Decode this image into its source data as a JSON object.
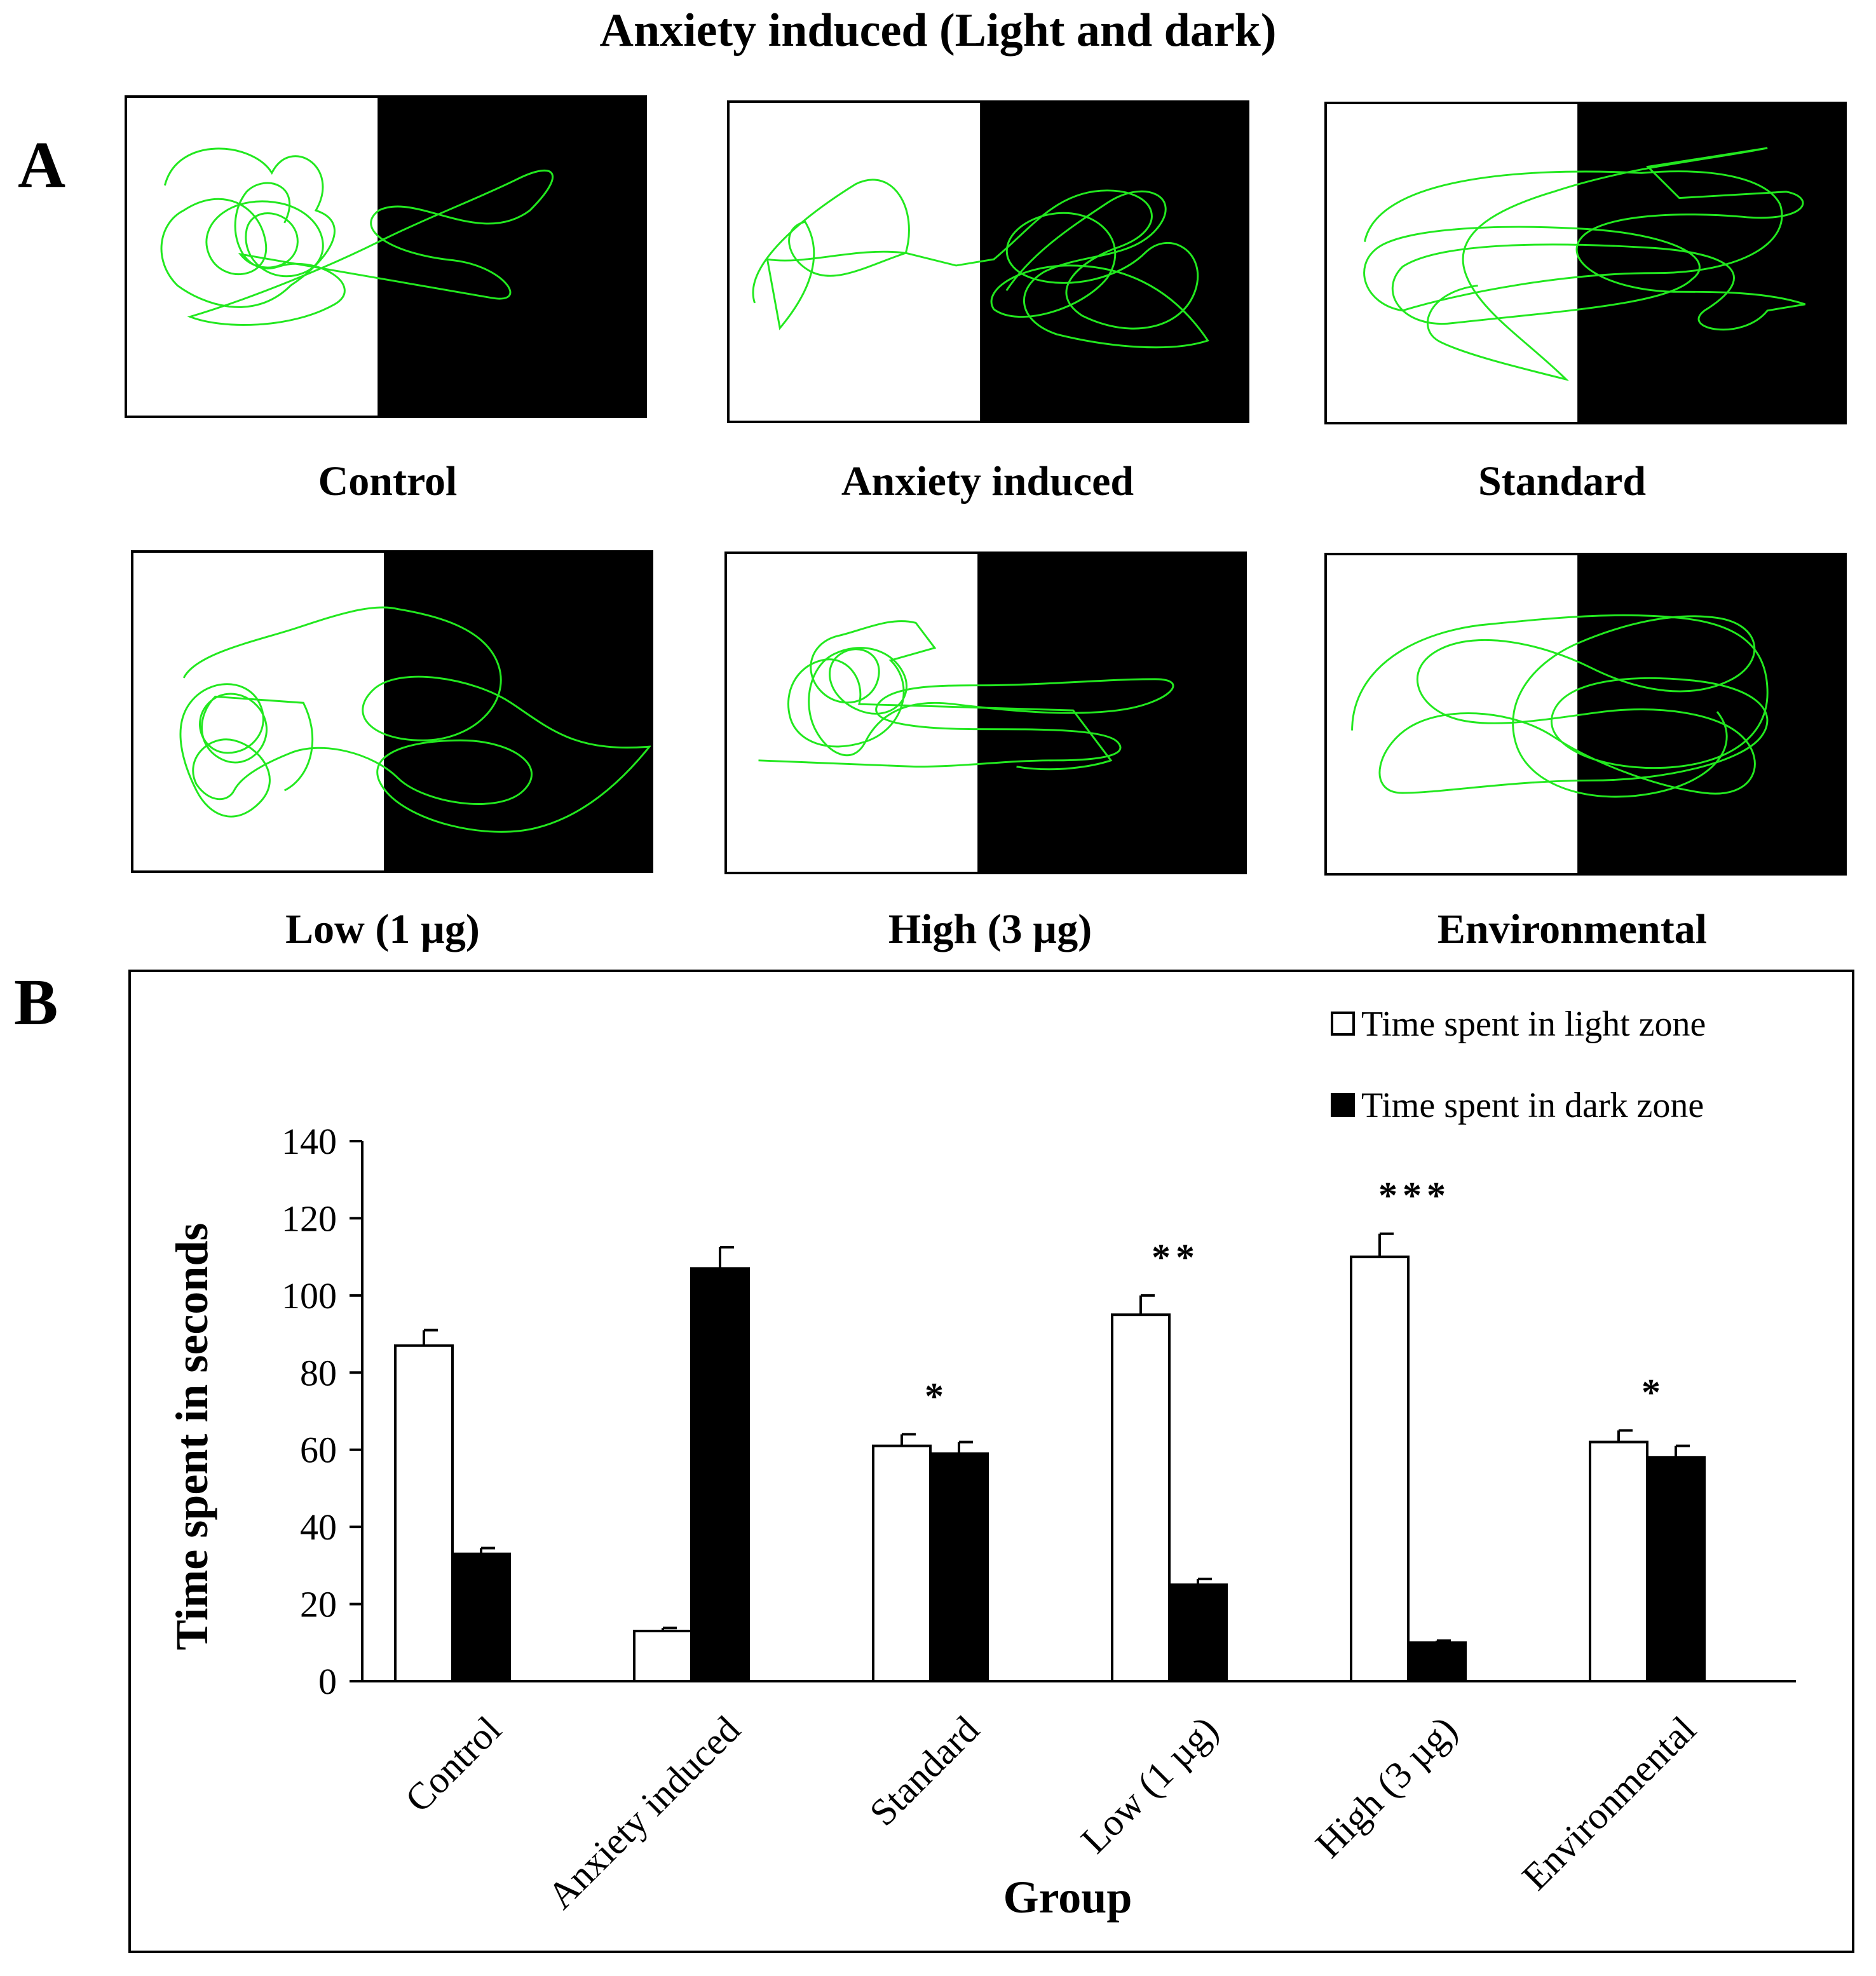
{
  "figure": {
    "title": "Anxiety induced (Light and dark)",
    "panel_a_letter": "A",
    "panel_b_letter": "B",
    "track_panels": [
      {
        "caption": "Control"
      },
      {
        "caption": "Anxiety induced"
      },
      {
        "caption": "Standard"
      },
      {
        "caption": "Low (1 µg)"
      },
      {
        "caption": "High (3 µg)"
      },
      {
        "caption": "Environmental"
      }
    ],
    "colors": {
      "track": "#22e81f",
      "light_zone": "#ffffff",
      "dark_zone": "#000000"
    }
  },
  "chart_data": {
    "type": "bar",
    "xlabel": "Group",
    "ylabel": "Time spent in seconds",
    "categories": [
      "Control",
      "Anxiety  induced",
      "Standard",
      "Low (1 µg)",
      "High (3 µg)",
      "Environmental"
    ],
    "series": [
      {
        "name": "Time spent in light zone",
        "color": "#ffffff",
        "values": [
          87,
          13,
          61,
          95,
          110,
          62
        ],
        "errors": [
          4,
          0.8,
          3,
          5,
          6,
          3
        ]
      },
      {
        "name": "Time spent in dark zone",
        "color": "#000000",
        "values": [
          33,
          107,
          59,
          25,
          10,
          58
        ],
        "errors": [
          1.5,
          5.5,
          3,
          1.5,
          0.5,
          3
        ]
      }
    ],
    "significance": [
      "",
      "",
      "*",
      "**",
      "***",
      "*"
    ],
    "ylim": [
      0,
      140
    ],
    "yticks": [
      0,
      20,
      40,
      60,
      80,
      100,
      120,
      140
    ],
    "grid": false,
    "legend": "top-right"
  }
}
